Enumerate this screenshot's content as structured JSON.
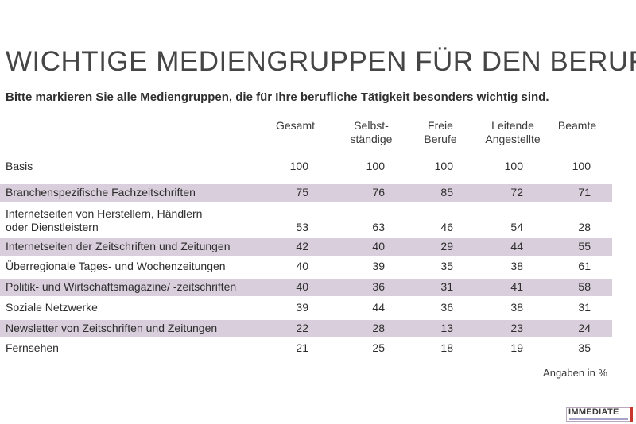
{
  "title": "WICHTIGE MEDIENGRUPPEN FÜR DEN BERUF",
  "subtitle": "Bitte markieren Sie alle Mediengruppen, die für Ihre berufliche Tätigkeit besonders wichtig sind.",
  "note": "Angaben in %",
  "logo_text": "IMMEDIATE",
  "colors": {
    "row_shade": "#d9cfdc",
    "text": "#2d2d2d",
    "title": "#454545"
  },
  "chart_data": {
    "type": "table",
    "title": "WICHTIGE MEDIENGRUPPEN FÜR DEN BERUF",
    "columns": [
      {
        "line1": "Gesamt",
        "line2": ""
      },
      {
        "line1": "Selbst-",
        "line2": "ständige"
      },
      {
        "line1": "Freie",
        "line2": "Berufe"
      },
      {
        "line1": "Leitende",
        "line2": "Angestellte"
      },
      {
        "line1": "Beamte",
        "line2": ""
      }
    ],
    "rows": [
      {
        "label1": "Basis",
        "label2": "",
        "values": [
          100,
          100,
          100,
          100,
          100
        ]
      },
      {
        "label1": "Branchenspezifische Fachzeitschriften",
        "label2": "",
        "values": [
          75,
          76,
          85,
          72,
          71
        ]
      },
      {
        "label1": "Internetseiten von Herstellern, Händlern",
        "label2": "oder Dienstleistern",
        "values": [
          53,
          63,
          46,
          54,
          28
        ]
      },
      {
        "label1": "Internetseiten der Zeitschriften und Zeitungen",
        "label2": "",
        "values": [
          42,
          40,
          29,
          44,
          55
        ]
      },
      {
        "label1": "Überregionale Tages- und Wochenzeitungen",
        "label2": "",
        "values": [
          40,
          39,
          35,
          38,
          61
        ]
      },
      {
        "label1": "Politik- und Wirtschaftsmagazine/ -zeitschriften",
        "label2": "",
        "values": [
          40,
          36,
          31,
          41,
          58
        ]
      },
      {
        "label1": "Soziale Netzwerke",
        "label2": "",
        "values": [
          39,
          44,
          36,
          38,
          31
        ]
      },
      {
        "label1": "Newsletter von Zeitschriften und Zeitungen",
        "label2": "",
        "values": [
          22,
          28,
          13,
          23,
          24
        ]
      },
      {
        "label1": "Fernsehen",
        "label2": "",
        "values": [
          21,
          25,
          18,
          19,
          35
        ]
      }
    ],
    "unit": "%"
  }
}
